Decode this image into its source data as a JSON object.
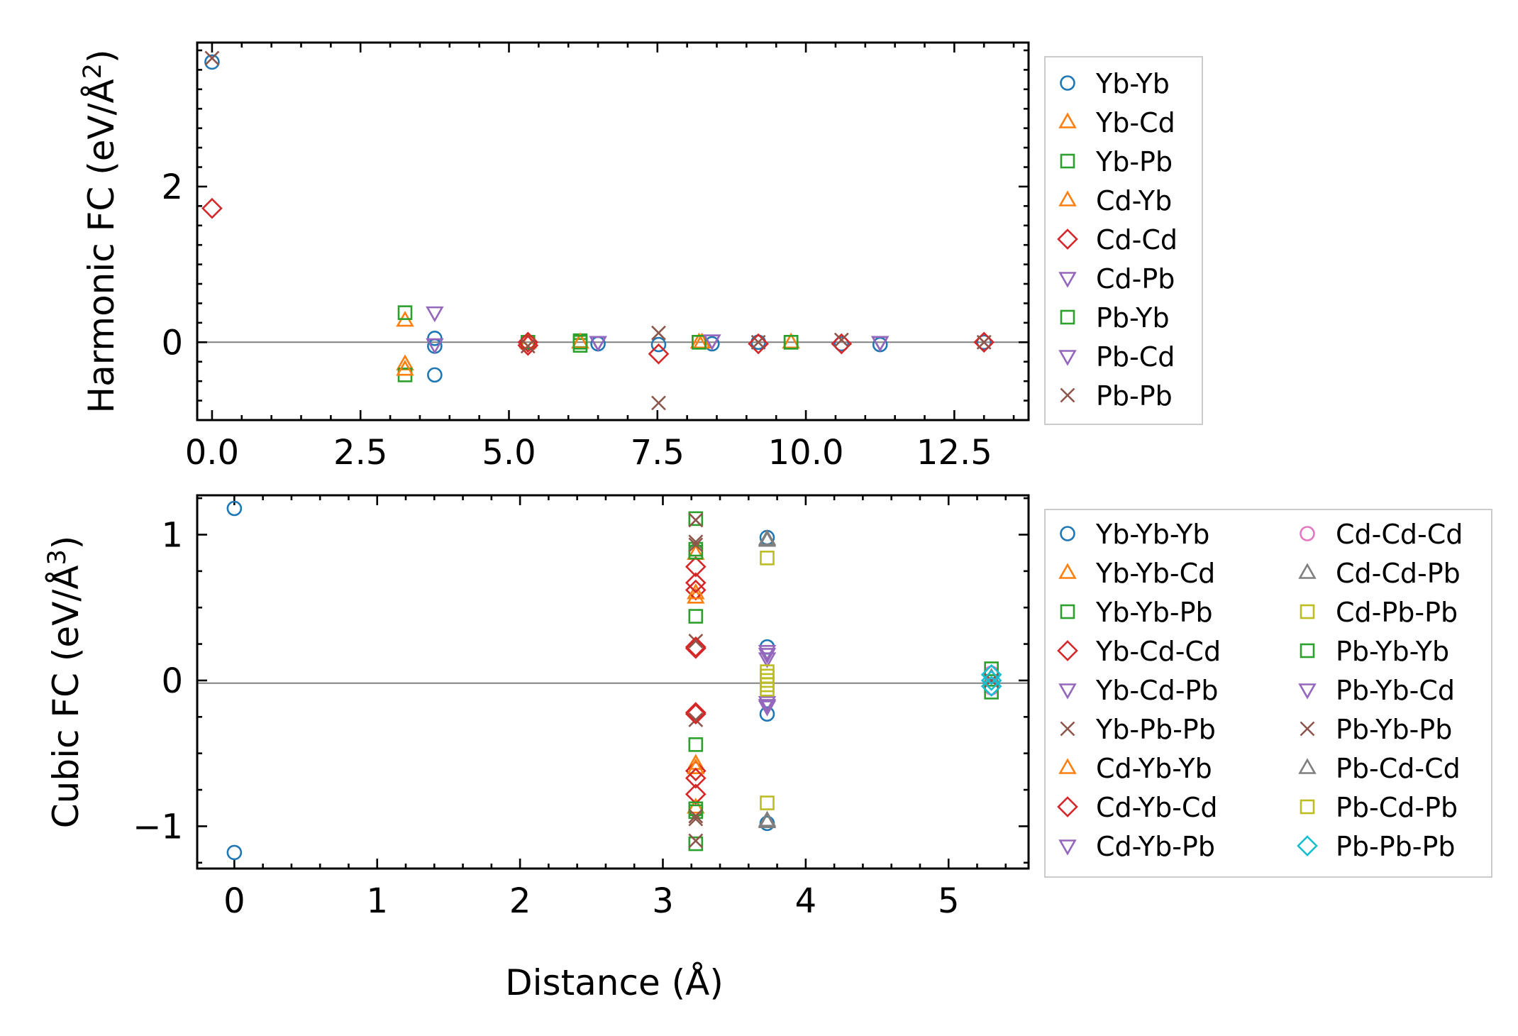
{
  "figure": {
    "xlabel": "Distance (Å)"
  },
  "chart_data": [
    {
      "type": "scatter",
      "title": "",
      "ylabel_main": "Harmonic FC (eV/Å",
      "ylabel_sup": "2",
      "ylabel_close": ")",
      "xlim": [
        -0.25,
        13.75
      ],
      "ylim": [
        -1.0,
        3.85
      ],
      "xticks": [
        0,
        2.5,
        5,
        7.5,
        10,
        12.5
      ],
      "xtick_labels": [
        "0.0",
        "2.5",
        "5.0",
        "7.5",
        "10.0",
        "12.5"
      ],
      "xticks_minor": [
        0.5,
        1,
        1.5,
        2,
        3,
        3.5,
        4,
        4.5,
        5.5,
        6,
        6.5,
        7,
        8,
        8.5,
        9,
        9.5,
        10.5,
        11,
        11.5,
        12,
        13,
        13.5
      ],
      "yticks": [
        0,
        2
      ],
      "ytick_labels": [
        "0",
        "2"
      ],
      "yticks_minor": [
        -0.75,
        -0.5,
        -0.25,
        0.25,
        0.5,
        0.75,
        1.0,
        1.25,
        1.5,
        1.75,
        2.25,
        2.5,
        2.75,
        3.0,
        3.25,
        3.5,
        3.75
      ],
      "zero_line": true,
      "legend": {
        "placement": "outside-right",
        "columns": 1
      },
      "series": [
        {
          "name": "Yb-Yb",
          "marker": "circle",
          "color": "#1f77b4",
          "points": [
            [
              0,
              3.6
            ],
            [
              3.75,
              0.05
            ],
            [
              3.75,
              -0.05
            ],
            [
              3.75,
              -0.42
            ],
            [
              5.32,
              0.0
            ],
            [
              6.5,
              -0.02
            ],
            [
              7.52,
              -0.03
            ],
            [
              8.42,
              -0.02
            ],
            [
              9.2,
              0.0
            ],
            [
              10.6,
              -0.02
            ],
            [
              11.25,
              -0.03
            ],
            [
              13.0,
              0.0
            ]
          ]
        },
        {
          "name": "Yb-Cd",
          "marker": "triangle-up",
          "color": "#ff7f0e",
          "points": [
            [
              3.25,
              0.28
            ],
            [
              3.25,
              -0.28
            ],
            [
              5.32,
              0.0
            ],
            [
              6.2,
              0.0
            ],
            [
              8.2,
              0.0
            ],
            [
              9.75,
              0.0
            ]
          ]
        },
        {
          "name": "Yb-Pb",
          "marker": "square",
          "color": "#2ca02c",
          "points": [
            [
              3.25,
              0.38
            ],
            [
              3.25,
              -0.42
            ],
            [
              5.32,
              0.0
            ],
            [
              6.2,
              0.02
            ],
            [
              6.2,
              -0.04
            ],
            [
              8.2,
              0.0
            ],
            [
              9.75,
              0.0
            ]
          ]
        },
        {
          "name": "Cd-Yb",
          "marker": "triangle-up",
          "color": "#ff7f0e",
          "points": [
            [
              3.25,
              -0.35
            ],
            [
              6.2,
              0.0
            ],
            [
              8.25,
              0.0
            ]
          ]
        },
        {
          "name": "Cd-Cd",
          "marker": "diamond",
          "color": "#d62728",
          "points": [
            [
              0,
              1.72
            ],
            [
              5.32,
              0.0
            ],
            [
              5.32,
              -0.04
            ],
            [
              7.52,
              -0.15
            ],
            [
              9.2,
              -0.02
            ],
            [
              10.6,
              -0.02
            ],
            [
              13.0,
              0.0
            ]
          ]
        },
        {
          "name": "Cd-Pb",
          "marker": "triangle-down",
          "color": "#9467bd",
          "points": [
            [
              3.75,
              0.38
            ],
            [
              3.75,
              -0.03
            ],
            [
              6.5,
              0.0
            ],
            [
              8.42,
              0.02
            ],
            [
              11.25,
              0.0
            ]
          ]
        },
        {
          "name": "Pb-Yb",
          "marker": "square",
          "color": "#2ca02c",
          "points": [
            [
              6.2,
              0.0
            ],
            [
              8.2,
              0.0
            ],
            [
              9.75,
              0.0
            ]
          ]
        },
        {
          "name": "Pb-Cd",
          "marker": "triangle-down",
          "color": "#9467bd",
          "points": [
            [
              6.5,
              0.0
            ],
            [
              8.42,
              0.02
            ],
            [
              11.25,
              0.0
            ]
          ]
        },
        {
          "name": "Pb-Pb",
          "marker": "x",
          "color": "#8c564b",
          "points": [
            [
              0,
              3.65
            ],
            [
              5.32,
              -0.05
            ],
            [
              7.52,
              0.12
            ],
            [
              7.52,
              -0.78
            ],
            [
              9.2,
              0.0
            ],
            [
              10.6,
              0.03
            ],
            [
              13.0,
              0.0
            ]
          ]
        }
      ]
    },
    {
      "type": "scatter",
      "title": "",
      "ylabel_main": "Cubic FC (eV/Å",
      "ylabel_sup": "3",
      "ylabel_close": ")",
      "xlim": [
        -0.26,
        5.56
      ],
      "ylim": [
        -1.29,
        1.27
      ],
      "xticks": [
        0,
        1,
        2,
        3,
        4,
        5
      ],
      "xtick_labels": [
        "0",
        "1",
        "2",
        "3",
        "4",
        "5"
      ],
      "xticks_minor": [
        0.2,
        0.4,
        0.6,
        0.8,
        1.2,
        1.4,
        1.6,
        1.8,
        2.2,
        2.4,
        2.6,
        2.8,
        3.2,
        3.4,
        3.6,
        3.8,
        4.2,
        4.4,
        4.6,
        4.8,
        5.2,
        5.4
      ],
      "yticks": [
        -1,
        0,
        1
      ],
      "ytick_labels": [
        "−1",
        "0",
        "1"
      ],
      "yticks_minor": [
        -1.25,
        -0.75,
        -0.5,
        -0.25,
        0.25,
        0.5,
        0.75,
        1.25
      ],
      "zero_line": true,
      "legend": {
        "placement": "outside-right",
        "columns": 2
      },
      "series": [
        {
          "name": "Yb-Yb-Yb",
          "marker": "circle",
          "color": "#1f77b4",
          "points": [
            [
              0,
              1.18
            ],
            [
              0,
              -1.18
            ],
            [
              3.73,
              0.98
            ],
            [
              3.73,
              0.23
            ],
            [
              3.73,
              -0.23
            ],
            [
              3.73,
              -0.98
            ]
          ]
        },
        {
          "name": "Yb-Yb-Cd",
          "marker": "triangle-up",
          "color": "#ff7f0e",
          "points": [
            [
              3.23,
              0.57
            ],
            [
              3.23,
              -0.57
            ],
            [
              3.23,
              0.87
            ],
            [
              3.23,
              -0.87
            ]
          ]
        },
        {
          "name": "Yb-Yb-Pb",
          "marker": "square",
          "color": "#2ca02c",
          "points": [
            [
              3.23,
              1.11
            ],
            [
              3.23,
              0.9
            ],
            [
              3.23,
              0.44
            ],
            [
              3.23,
              -0.44
            ],
            [
              3.23,
              -0.9
            ],
            [
              3.23,
              -1.12
            ]
          ]
        },
        {
          "name": "Yb-Cd-Cd",
          "marker": "diamond",
          "color": "#d62728",
          "points": [
            [
              3.23,
              0.78
            ],
            [
              3.23,
              0.62
            ],
            [
              3.23,
              0.22
            ],
            [
              3.23,
              -0.22
            ],
            [
              3.23,
              -0.62
            ],
            [
              3.23,
              -0.78
            ]
          ]
        },
        {
          "name": "Yb-Cd-Pb",
          "marker": "triangle-down",
          "color": "#9467bd",
          "points": [
            [
              3.73,
              0.2
            ],
            [
              3.73,
              -0.17
            ]
          ]
        },
        {
          "name": "Yb-Pb-Pb",
          "marker": "x",
          "color": "#8c564b",
          "points": [
            [
              3.23,
              1.1
            ],
            [
              3.23,
              0.95
            ],
            [
              3.23,
              0.27
            ],
            [
              3.23,
              -0.27
            ],
            [
              3.23,
              -0.95
            ],
            [
              3.23,
              -1.1
            ]
          ]
        },
        {
          "name": "Cd-Yb-Yb",
          "marker": "triangle-up",
          "color": "#ff7f0e",
          "points": [
            [
              3.23,
              0.6
            ],
            [
              3.23,
              -0.6
            ]
          ]
        },
        {
          "name": "Cd-Yb-Cd",
          "marker": "diamond",
          "color": "#d62728",
          "points": [
            [
              3.23,
              0.67
            ],
            [
              3.23,
              -0.67
            ],
            [
              3.23,
              0.23
            ],
            [
              3.23,
              -0.23
            ]
          ]
        },
        {
          "name": "Cd-Yb-Pb",
          "marker": "triangle-down",
          "color": "#9467bd",
          "points": [
            [
              3.73,
              0.15
            ],
            [
              3.73,
              -0.15
            ]
          ]
        },
        {
          "name": "Cd-Cd-Cd",
          "marker": "circle",
          "color": "#e377c2",
          "points": [
            [
              5.3,
              0.05
            ],
            [
              5.3,
              -0.05
            ]
          ]
        },
        {
          "name": "Cd-Cd-Pb",
          "marker": "triangle-up",
          "color": "#7f7f7f",
          "points": [
            [
              3.73,
              0.97
            ],
            [
              3.73,
              -0.97
            ],
            [
              5.3,
              0.02
            ]
          ]
        },
        {
          "name": "Cd-Pb-Pb",
          "marker": "square",
          "color": "#bcbd22",
          "points": [
            [
              3.73,
              0.84
            ],
            [
              3.73,
              -0.84
            ],
            [
              3.73,
              0.06
            ],
            [
              3.73,
              0.0
            ],
            [
              3.73,
              -0.06
            ]
          ]
        },
        {
          "name": "Pb-Yb-Yb",
          "marker": "square",
          "color": "#2ca02c",
          "points": [
            [
              3.23,
              0.88
            ],
            [
              3.23,
              -0.88
            ],
            [
              5.3,
              0.08
            ],
            [
              5.3,
              -0.08
            ]
          ]
        },
        {
          "name": "Pb-Yb-Cd",
          "marker": "triangle-down",
          "color": "#9467bd",
          "points": [
            [
              3.73,
              0.18
            ],
            [
              3.73,
              -0.18
            ]
          ]
        },
        {
          "name": "Pb-Yb-Pb",
          "marker": "x",
          "color": "#8c564b",
          "points": [
            [
              3.23,
              0.93
            ],
            [
              3.23,
              -0.93
            ],
            [
              5.3,
              0.0
            ]
          ]
        },
        {
          "name": "Pb-Cd-Cd",
          "marker": "triangle-up",
          "color": "#7f7f7f",
          "points": [
            [
              3.73,
              0.96
            ],
            [
              3.73,
              -0.96
            ]
          ]
        },
        {
          "name": "Pb-Cd-Pb",
          "marker": "square",
          "color": "#bcbd22",
          "points": [
            [
              3.73,
              0.03
            ],
            [
              3.73,
              -0.03
            ]
          ]
        },
        {
          "name": "Pb-Pb-Pb",
          "marker": "diamond",
          "color": "#17becf",
          "points": [
            [
              5.3,
              0.0
            ],
            [
              5.3,
              0.04
            ],
            [
              5.3,
              -0.04
            ]
          ]
        }
      ]
    }
  ]
}
